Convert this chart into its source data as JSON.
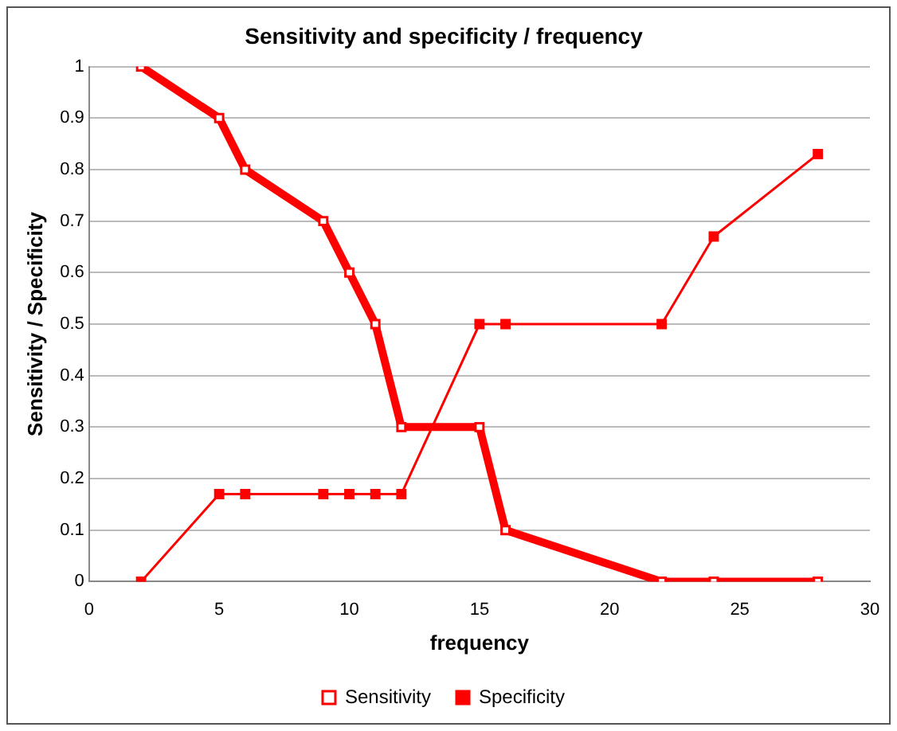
{
  "chart_data": {
    "type": "line",
    "title": "Sensitivity and specificity / frequency",
    "xlabel": "frequency",
    "ylabel": "Sensitivity / Specificity",
    "x": [
      2,
      5,
      6,
      9,
      10,
      11,
      12,
      15,
      16,
      22,
      24,
      28
    ],
    "series": [
      {
        "name": "Sensitivity",
        "color": "#ff0000",
        "values": [
          1,
          0.9,
          0.8,
          0.7,
          0.6,
          0.5,
          0.3,
          0.3,
          0.1,
          0,
          0,
          0
        ]
      },
      {
        "name": "Specificity",
        "color": "#ff0000",
        "values": [
          0,
          0.17,
          0.17,
          0.17,
          0.17,
          0.17,
          0.17,
          0.5,
          0.5,
          0.5,
          0.67,
          0.83
        ]
      }
    ],
    "xlim": [
      0,
      30
    ],
    "xticks": [
      0,
      5,
      10,
      15,
      20,
      25,
      30
    ],
    "ylim": [
      0,
      1
    ],
    "yticks": [
      0,
      0.1,
      0.2,
      0.3,
      0.4,
      0.5,
      0.6,
      0.7,
      0.8,
      0.9,
      1
    ],
    "grid": "y",
    "legend": "bottom",
    "marker": "square",
    "line_style": "solid"
  }
}
